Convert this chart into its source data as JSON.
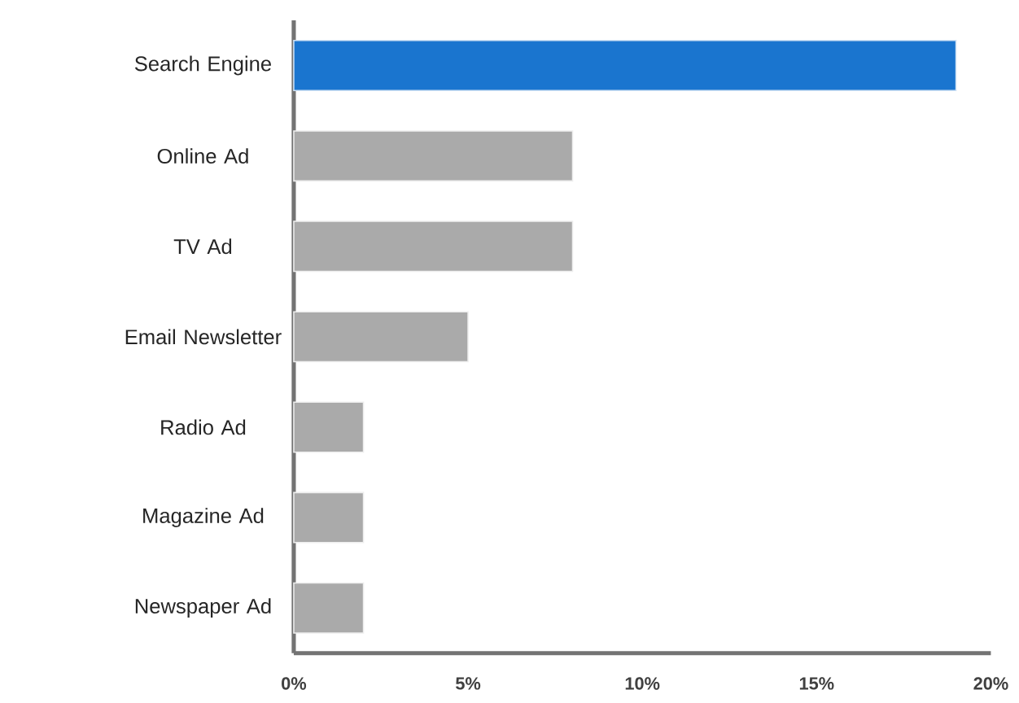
{
  "chart_data": {
    "type": "bar",
    "orientation": "horizontal",
    "categories": [
      "Search Engine",
      "Online Ad",
      "TV Ad",
      "Email Newsletter",
      "Radio Ad",
      "Magazine Ad",
      "Newspaper Ad"
    ],
    "values": [
      19,
      8,
      8,
      5,
      2,
      2,
      2
    ],
    "colors": [
      "#1a75cf",
      "#aaaaaa",
      "#aaaaaa",
      "#aaaaaa",
      "#aaaaaa",
      "#aaaaaa",
      "#aaaaaa"
    ],
    "xlim": [
      0,
      20
    ],
    "xticks": [
      {
        "value": 0,
        "label": "0%"
      },
      {
        "value": 5,
        "label": "5%"
      },
      {
        "value": 10,
        "label": "10%"
      },
      {
        "value": 15,
        "label": "15%"
      },
      {
        "value": 20,
        "label": "20%"
      }
    ]
  }
}
